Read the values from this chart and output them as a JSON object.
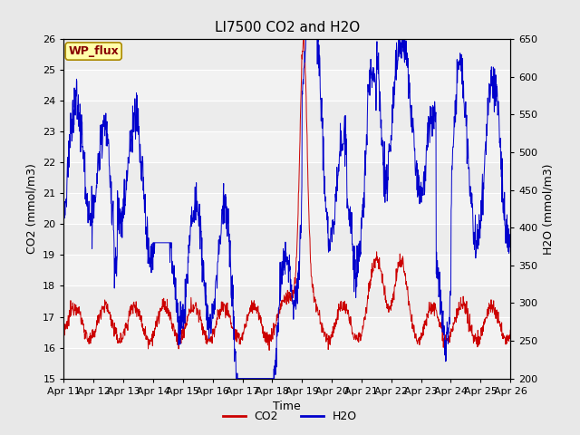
{
  "title": "LI7500 CO2 and H2O",
  "xlabel": "Time",
  "ylabel_left": "CO2 (mmol/m3)",
  "ylabel_right": "H2O (mmol/m3)",
  "annotation": "WP_flux",
  "co2_ylim": [
    15.0,
    26.0
  ],
  "h2o_ylim": [
    200,
    650
  ],
  "co2_yticks": [
    15.0,
    16.0,
    17.0,
    18.0,
    19.0,
    20.0,
    21.0,
    22.0,
    23.0,
    24.0,
    25.0,
    26.0
  ],
  "h2o_yticks": [
    200,
    250,
    300,
    350,
    400,
    450,
    500,
    550,
    600,
    650
  ],
  "x_tick_labels": [
    "Apr 11",
    "Apr 12",
    "Apr 13",
    "Apr 14",
    "Apr 15",
    "Apr 16",
    "Apr 17",
    "Apr 18",
    "Apr 19",
    "Apr 20",
    "Apr 21",
    "Apr 22",
    "Apr 23",
    "Apr 24",
    "Apr 25",
    "Apr 26"
  ],
  "co2_color": "#cc0000",
  "h2o_color": "#0000cc",
  "fig_facecolor": "#e8e8e8",
  "plot_facecolor": "#f2f2f2",
  "grid_color": "#ffffff",
  "title_fontsize": 11,
  "label_fontsize": 9,
  "tick_fontsize": 8,
  "legend_fontsize": 9,
  "n_days": 15,
  "pts_per_day": 96
}
